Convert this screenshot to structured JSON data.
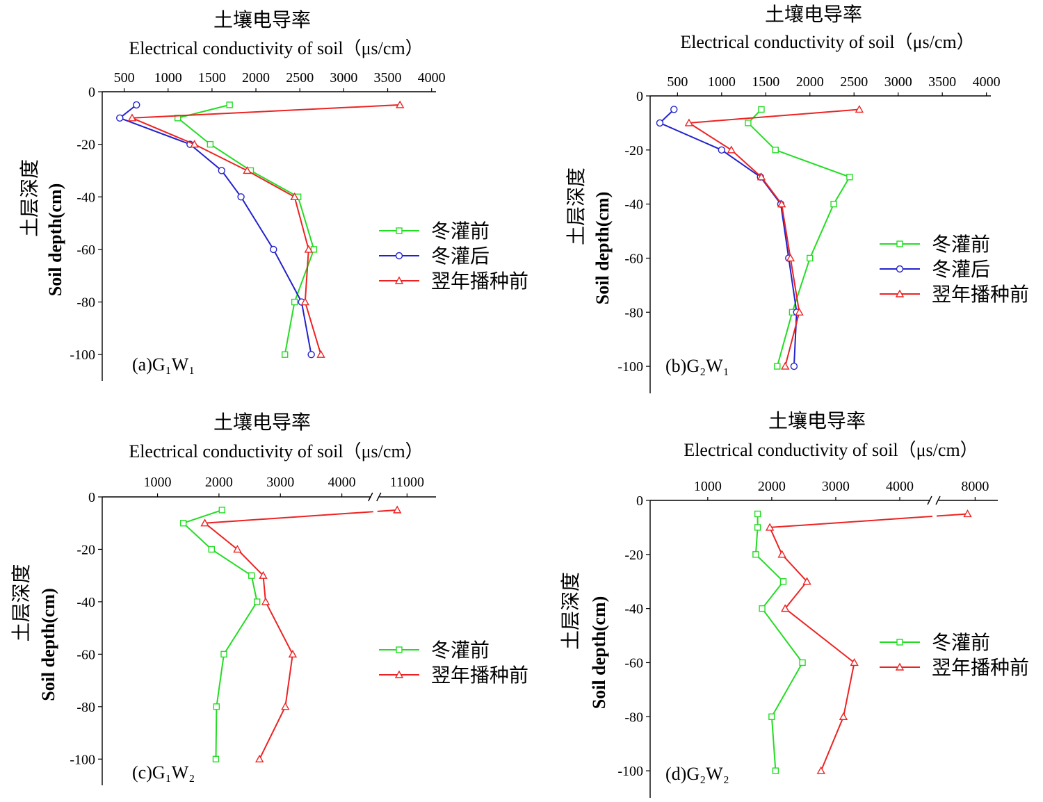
{
  "chart_data": [
    {
      "type": "line",
      "panel_label": "(a)G₁W₁",
      "title": "土壤电导率",
      "xlabel": "Electrical conductivity of soil（μs/cm）",
      "ylabel_cn": "土层深度",
      "ylabel_en": "Soil depth(cm)",
      "x_ticks": [
        "500",
        "1000",
        "1500",
        "2000",
        "2500",
        "3000",
        "3500",
        "4000"
      ],
      "y_ticks": [
        "0",
        "-20",
        "-40",
        "-60",
        "-80",
        "-100"
      ],
      "xlim": [
        250,
        4050
      ],
      "ylim": [
        -110,
        0
      ],
      "axis_break": false,
      "legend": "right",
      "series": [
        {
          "name": "冬灌前",
          "color": "#22dd22",
          "marker": "square",
          "points": [
            [
              1700,
              -5
            ],
            [
              1110,
              -10
            ],
            [
              1480,
              -20
            ],
            [
              1940,
              -30
            ],
            [
              2480,
              -40
            ],
            [
              2660,
              -60
            ],
            [
              2440,
              -80
            ],
            [
              2330,
              -100
            ]
          ]
        },
        {
          "name": "冬灌后",
          "color": "#2222cc",
          "marker": "circle",
          "points": [
            [
              640,
              -5
            ],
            [
              450,
              -10
            ],
            [
              1250,
              -20
            ],
            [
              1610,
              -30
            ],
            [
              1830,
              -40
            ],
            [
              2200,
              -60
            ],
            [
              2520,
              -80
            ],
            [
              2630,
              -100
            ]
          ]
        },
        {
          "name": "翌年播种前",
          "color": "#ee2222",
          "marker": "triangle",
          "points": [
            [
              3640,
              -5
            ],
            [
              590,
              -10
            ],
            [
              1300,
              -20
            ],
            [
              1900,
              -30
            ],
            [
              2440,
              -40
            ],
            [
              2600,
              -60
            ],
            [
              2560,
              -80
            ],
            [
              2740,
              -100
            ]
          ]
        }
      ]
    },
    {
      "type": "line",
      "panel_label": "(b)G₂W₁",
      "title": "土壤电导率",
      "xlabel": "Electrical conductivity of soil（μs/cm）",
      "ylabel_cn": "土层深度",
      "ylabel_en": "Soil depth(cm)",
      "x_ticks": [
        "500",
        "1000",
        "1500",
        "2000",
        "2500",
        "3000",
        "3500",
        "4000"
      ],
      "y_ticks": [
        "0",
        "-20",
        "-40",
        "-60",
        "-80",
        "-100"
      ],
      "xlim": [
        190,
        4050
      ],
      "ylim": [
        -110,
        0
      ],
      "axis_break": false,
      "legend": "right",
      "series": [
        {
          "name": "冬灌前",
          "color": "#22dd22",
          "marker": "square",
          "points": [
            [
              1450,
              -5
            ],
            [
              1300,
              -10
            ],
            [
              1610,
              -20
            ],
            [
              2450,
              -30
            ],
            [
              2270,
              -40
            ],
            [
              2000,
              -60
            ],
            [
              1800,
              -80
            ],
            [
              1630,
              -100
            ]
          ]
        },
        {
          "name": "冬灌后",
          "color": "#2222cc",
          "marker": "circle",
          "points": [
            [
              460,
              -5
            ],
            [
              300,
              -10
            ],
            [
              1000,
              -20
            ],
            [
              1440,
              -30
            ],
            [
              1670,
              -40
            ],
            [
              1760,
              -60
            ],
            [
              1850,
              -80
            ],
            [
              1820,
              -100
            ]
          ]
        },
        {
          "name": "翌年播种前",
          "color": "#ee2222",
          "marker": "triangle",
          "points": [
            [
              2560,
              -5
            ],
            [
              630,
              -10
            ],
            [
              1110,
              -20
            ],
            [
              1450,
              -30
            ],
            [
              1680,
              -40
            ],
            [
              1780,
              -60
            ],
            [
              1880,
              -80
            ],
            [
              1720,
              -100
            ]
          ]
        }
      ]
    },
    {
      "type": "line",
      "panel_label": "(c)G₁W₂",
      "title": "土壤电导率",
      "xlabel": "Electrical conductivity of soil（μs/cm）",
      "ylabel_cn": "土层深度",
      "ylabel_en": "Soil depth(cm)",
      "x_ticks": [
        "1000",
        "2000",
        "3000",
        "4000",
        "11000"
      ],
      "y_ticks": [
        "0",
        "-20",
        "-40",
        "-60",
        "-80",
        "-100"
      ],
      "xlim": [
        100,
        11500
      ],
      "ylim": [
        -110,
        0
      ],
      "axis_break": true,
      "break_between": [
        4500,
        10500
      ],
      "legend": "right",
      "series": [
        {
          "name": "冬灌前",
          "color": "#22dd22",
          "marker": "square",
          "points": [
            [
              2050,
              -5
            ],
            [
              1420,
              -10
            ],
            [
              1880,
              -20
            ],
            [
              2530,
              -30
            ],
            [
              2620,
              -40
            ],
            [
              2080,
              -60
            ],
            [
              1960,
              -80
            ],
            [
              1950,
              -100
            ]
          ]
        },
        {
          "name": "翌年播种前",
          "color": "#ee2222",
          "marker": "triangle",
          "points": [
            [
              10830,
              -5
            ],
            [
              1770,
              -10
            ],
            [
              2300,
              -20
            ],
            [
              2720,
              -30
            ],
            [
              2760,
              -40
            ],
            [
              3200,
              -60
            ],
            [
              3080,
              -80
            ],
            [
              2660,
              -100
            ]
          ]
        }
      ]
    },
    {
      "type": "line",
      "panel_label": "(d)G₂W₂",
      "title": "土壤电导率",
      "xlabel": "Electrical conductivity of soil（μs/cm）",
      "ylabel_cn": "土层深度",
      "ylabel_en": "Soil depth(cm)",
      "x_ticks": [
        "1000",
        "2000",
        "3000",
        "4000",
        "8000"
      ],
      "y_ticks": [
        "0",
        "-20",
        "-40",
        "-60",
        "-80",
        "-100"
      ],
      "xlim": [
        100,
        8300
      ],
      "ylim": [
        -110,
        0
      ],
      "axis_break": true,
      "break_between": [
        4500,
        7500
      ],
      "legend": "right",
      "series": [
        {
          "name": "冬灌前",
          "color": "#22dd22",
          "marker": "square",
          "points": [
            [
              1780,
              -5
            ],
            [
              1780,
              -10
            ],
            [
              1750,
              -20
            ],
            [
              2180,
              -30
            ],
            [
              1850,
              -40
            ],
            [
              2480,
              -60
            ],
            [
              2000,
              -80
            ],
            [
              2060,
              -100
            ]
          ]
        },
        {
          "name": "翌年播种前",
          "color": "#ee2222",
          "marker": "triangle",
          "points": [
            [
              7900,
              -5
            ],
            [
              1970,
              -10
            ],
            [
              2160,
              -20
            ],
            [
              2550,
              -30
            ],
            [
              2210,
              -40
            ],
            [
              3290,
              -60
            ],
            [
              3120,
              -80
            ],
            [
              2770,
              -100
            ]
          ]
        }
      ]
    }
  ]
}
